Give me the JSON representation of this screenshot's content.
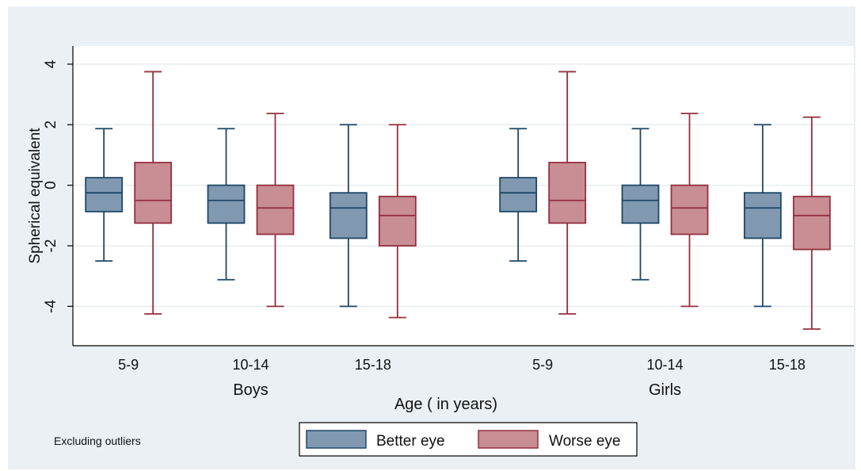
{
  "chart_data": {
    "type": "box",
    "ylabel": "Spherical equivalent",
    "xlabel": "Age ( in years)",
    "ylim": [
      -5.3,
      4.6
    ],
    "yticks": [
      4,
      2,
      0,
      -2,
      -4
    ],
    "grid": true,
    "note": "Excluding outliers",
    "legend": {
      "placement": "bottom-center",
      "entries": [
        {
          "name": "Better eye",
          "color": "#8099b1",
          "stroke": "#1f4766"
        },
        {
          "name": "Worse eye",
          "color": "#c98d94",
          "stroke": "#93303f"
        }
      ]
    },
    "groups": [
      {
        "label": "Boys",
        "categories": [
          {
            "label": "5-9",
            "better": {
              "min": -2.5,
              "q1": -0.87,
              "median": -0.25,
              "q3": 0.25,
              "max": 1.87
            },
            "worse": {
              "min": -4.25,
              "q1": -1.25,
              "median": -0.5,
              "q3": 0.75,
              "max": 3.75
            }
          },
          {
            "label": "10-14",
            "better": {
              "min": -3.12,
              "q1": -1.25,
              "median": -0.5,
              "q3": 0.0,
              "max": 1.87
            },
            "worse": {
              "min": -4.0,
              "q1": -1.62,
              "median": -0.75,
              "q3": 0.0,
              "max": 2.37
            }
          },
          {
            "label": "15-18",
            "better": {
              "min": -4.0,
              "q1": -1.75,
              "median": -0.75,
              "q3": -0.25,
              "max": 2.0
            },
            "worse": {
              "min": -4.37,
              "q1": -2.0,
              "median": -1.0,
              "q3": -0.37,
              "max": 2.0
            }
          }
        ]
      },
      {
        "label": "Girls",
        "categories": [
          {
            "label": "5-9",
            "better": {
              "min": -2.5,
              "q1": -0.87,
              "median": -0.25,
              "q3": 0.25,
              "max": 1.87
            },
            "worse": {
              "min": -4.25,
              "q1": -1.25,
              "median": -0.5,
              "q3": 0.75,
              "max": 3.75
            }
          },
          {
            "label": "10-14",
            "better": {
              "min": -3.12,
              "q1": -1.25,
              "median": -0.5,
              "q3": 0.0,
              "max": 1.87
            },
            "worse": {
              "min": -4.0,
              "q1": -1.62,
              "median": -0.75,
              "q3": 0.0,
              "max": 2.37
            }
          },
          {
            "label": "15-18",
            "better": {
              "min": -4.0,
              "q1": -1.75,
              "median": -0.75,
              "q3": -0.25,
              "max": 2.0
            },
            "worse": {
              "min": -4.75,
              "q1": -2.12,
              "median": -1.0,
              "q3": -0.37,
              "max": 2.25
            }
          }
        ]
      }
    ]
  }
}
